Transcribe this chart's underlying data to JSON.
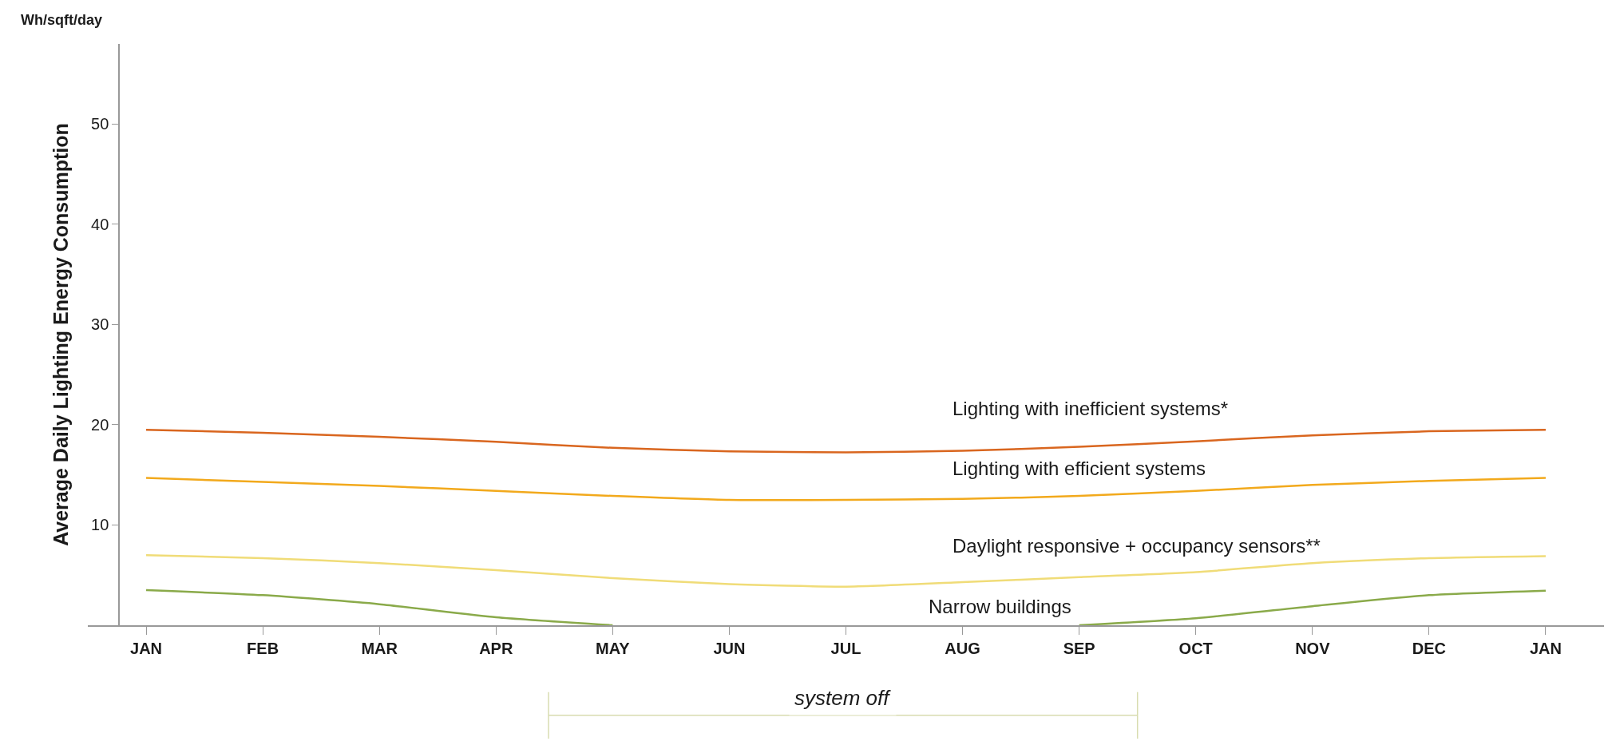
{
  "chart_data": {
    "type": "line",
    "ylabel": "Average Daily Lighting Energy Consumption",
    "annotations": [
      "Wh/sqft/day",
      "system off"
    ],
    "categories": [
      "JAN",
      "FEB",
      "MAR",
      "APR",
      "MAY",
      "JUN",
      "JUL",
      "AUG",
      "SEP",
      "OCT",
      "NOV",
      "DEC",
      "JAN"
    ],
    "ylim": [
      0,
      58
    ],
    "yticks": [
      10,
      20,
      30,
      40,
      50
    ],
    "series": [
      {
        "name": "Lighting with inefficient systems*",
        "color": "#d9661f",
        "values": [
          19.5,
          19.2,
          18.8,
          18.3,
          17.7,
          17.35,
          17.25,
          17.4,
          17.8,
          18.35,
          18.95,
          19.35,
          19.5
        ]
      },
      {
        "name": "Lighting with efficient systems",
        "color": "#f2a91c",
        "values": [
          14.7,
          14.3,
          13.9,
          13.4,
          12.9,
          12.5,
          12.5,
          12.6,
          12.9,
          13.4,
          14.0,
          14.4,
          14.7
        ]
      },
      {
        "name": "Daylight responsive + occupancy sensors**",
        "color": "#f0dc78",
        "values": [
          7.0,
          6.7,
          6.2,
          5.5,
          4.7,
          4.1,
          3.85,
          4.3,
          4.8,
          5.3,
          6.2,
          6.7,
          6.9
        ]
      },
      {
        "name": "Narrow buildings",
        "color": "#8aaa4a",
        "values": [
          3.5,
          3.0,
          2.1,
          0.8,
          0,
          null,
          null,
          null,
          0,
          0.7,
          1.9,
          3.0,
          3.45
        ]
      }
    ],
    "legend": false,
    "marker": "none",
    "line_style": "solid"
  }
}
